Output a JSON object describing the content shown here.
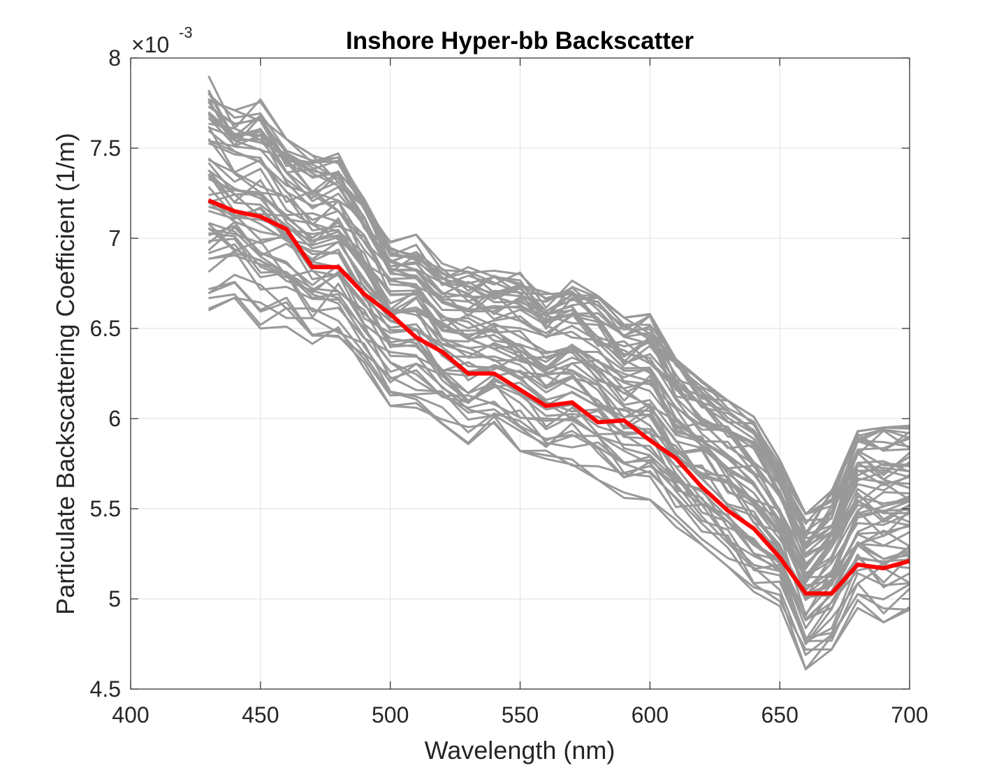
{
  "chart_data": {
    "type": "line",
    "title": "Inshore Hyper-bb Backscatter",
    "xlabel": "Wavelength (nm)",
    "ylabel": "Particulate Backscattering Coefficient (1/m)",
    "y_multiplier": "×10",
    "y_exponent": "-3",
    "xlim": [
      400,
      700
    ],
    "ylim": [
      4.5,
      8
    ],
    "x_ticks": [
      "400",
      "450",
      "500",
      "550",
      "600",
      "650",
      "700"
    ],
    "y_ticks": [
      "4.5",
      "5",
      "5.5",
      "6",
      "6.5",
      "7",
      "7.5",
      "8"
    ],
    "grid": true,
    "x": [
      430,
      440,
      450,
      460,
      470,
      480,
      490,
      500,
      510,
      520,
      530,
      540,
      550,
      560,
      570,
      580,
      590,
      600,
      610,
      620,
      630,
      640,
      650,
      660,
      670,
      680,
      690,
      700
    ],
    "mean_series": {
      "color": "#ff0000",
      "values": [
        7.21,
        7.15,
        7.12,
        7.05,
        6.84,
        6.84,
        6.69,
        6.58,
        6.45,
        6.37,
        6.25,
        6.25,
        6.16,
        6.07,
        6.09,
        5.98,
        5.99,
        5.88,
        5.78,
        5.62,
        5.49,
        5.39,
        5.23,
        5.03,
        5.03,
        5.19,
        5.17,
        5.21
      ]
    },
    "individual_series": {
      "color": "#999999",
      "count": 60,
      "note_range_min": [
        6.6,
        6.67,
        6.5,
        6.51,
        6.4,
        6.43,
        6.24,
        6.07,
        6.06,
        5.97,
        5.85,
        5.93,
        5.82,
        5.75,
        5.74,
        5.66,
        5.56,
        5.55,
        5.4,
        5.3,
        5.18,
        5.04,
        4.96,
        4.61,
        4.72,
        4.95,
        4.87,
        4.94
      ],
      "note_range_max": [
        7.9,
        7.71,
        7.77,
        7.55,
        7.46,
        7.47,
        7.27,
        7.02,
        7.02,
        6.86,
        6.84,
        6.82,
        6.81,
        6.7,
        6.78,
        6.68,
        6.56,
        6.58,
        6.33,
        6.21,
        6.1,
        6.01,
        5.77,
        5.47,
        5.6,
        5.93,
        5.95,
        5.96
      ]
    }
  }
}
